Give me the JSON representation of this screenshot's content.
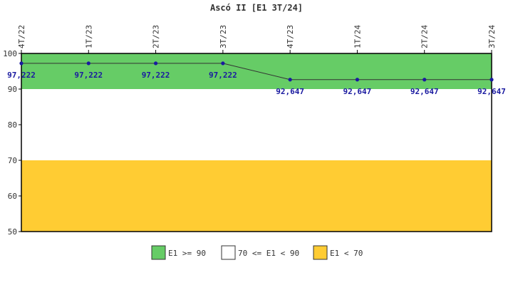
{
  "chart_data": {
    "type": "line",
    "title": "Ascó II [E1 3T/24]",
    "categories": [
      "4T/22",
      "1T/23",
      "2T/23",
      "3T/23",
      "4T/23",
      "1T/24",
      "2T/24",
      "3T/24"
    ],
    "values": [
      97.222,
      97.222,
      97.222,
      97.222,
      92.647,
      92.647,
      92.647,
      92.647
    ],
    "value_labels": [
      "97,222",
      "97,222",
      "97,222",
      "97,222",
      "92,647",
      "92,647",
      "92,647",
      "92,647"
    ],
    "ylim": [
      50,
      100
    ],
    "yticks": [
      50,
      60,
      70,
      80,
      90,
      100
    ],
    "bands": [
      {
        "from": 90,
        "to": 100,
        "color": "#66cc66",
        "label": "E1 >= 90"
      },
      {
        "from": 70,
        "to": 90,
        "color": "#ffffff",
        "label": "70 <= E1 < 90"
      },
      {
        "from": 50,
        "to": 70,
        "color": "#ffcc33",
        "label": "E1 < 70"
      }
    ],
    "line_color": "#333333",
    "marker_color": "#1a1aa0",
    "grid": false,
    "legend_position": "bottom"
  }
}
